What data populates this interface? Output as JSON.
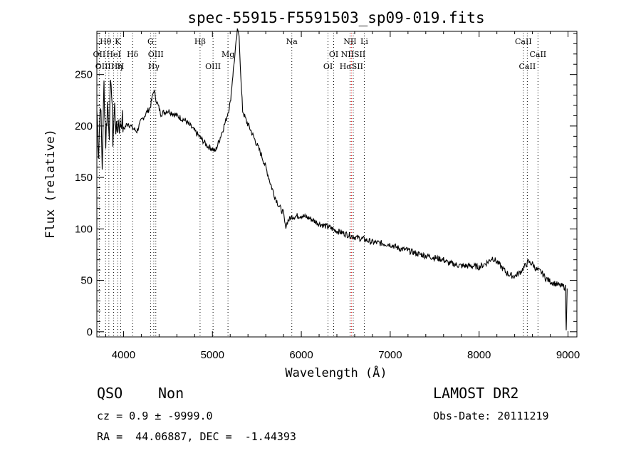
{
  "chart_data": {
    "type": "line",
    "title": "spec-55915-F5591503_sp09-019.fits",
    "xlabel": "Wavelength (Å)",
    "ylabel": "Flux (relative)",
    "xlim": [
      3700,
      9100
    ],
    "ylim": [
      -5,
      292
    ],
    "x_ticks": [
      4000,
      5000,
      6000,
      7000,
      8000,
      9000
    ],
    "y_ticks": [
      0,
      50,
      100,
      150,
      200,
      250
    ],
    "grid": false,
    "legend": "none",
    "series": [
      {
        "x": [
          3700,
          3720,
          3740,
          3760,
          3780,
          3800,
          3820,
          3840,
          3860,
          3880,
          3900,
          3920,
          3940,
          3960,
          3980,
          4000,
          4050,
          4100,
          4150,
          4200,
          4250,
          4300,
          4340,
          4360,
          4380,
          4420,
          4500,
          4600,
          4700,
          4800,
          4850,
          4900,
          4950,
          5000,
          5030,
          5060,
          5100,
          5150,
          5200,
          5230,
          5260,
          5280,
          5300,
          5320,
          5340,
          5380,
          5420,
          5460,
          5500,
          5550,
          5600,
          5650,
          5700,
          5750,
          5800,
          5820,
          5850,
          5900,
          6000,
          6100,
          6200,
          6300,
          6400,
          6500,
          6600,
          6700,
          6800,
          6900,
          7000,
          7100,
          7200,
          7300,
          7400,
          7500,
          7600,
          7650,
          7700,
          7800,
          7900,
          8000,
          8050,
          8100,
          8150,
          8200,
          8250,
          8300,
          8350,
          8400,
          8450,
          8500,
          8550,
          8600,
          8650,
          8700,
          8750,
          8800,
          8850,
          8900,
          8950,
          8970,
          8980,
          8990
        ],
        "y": [
          215,
          175,
          228,
          160,
          240,
          185,
          222,
          198,
          250,
          188,
          218,
          192,
          205,
          200,
          208,
          197,
          203,
          198,
          195,
          205,
          212,
          218,
          235,
          228,
          222,
          212,
          215,
          210,
          205,
          195,
          190,
          185,
          180,
          178,
          175,
          182,
          192,
          205,
          222,
          250,
          275,
          292,
          290,
          245,
          215,
          205,
          198,
          190,
          182,
          172,
          160,
          145,
          132,
          122,
          115,
          102,
          108,
          112,
          113,
          110,
          105,
          102,
          98,
          95,
          92,
          90,
          87,
          86,
          85,
          81,
          79,
          76,
          74,
          72,
          70,
          67,
          66,
          64,
          64,
          63,
          65,
          68,
          72,
          68,
          63,
          58,
          55,
          54,
          57,
          62,
          68,
          66,
          60,
          58,
          52,
          49,
          47,
          45,
          44,
          43,
          0,
          42
        ]
      }
    ],
    "line_markers": [
      {
        "label": "Hθ",
        "x": 3798,
        "row": 0,
        "color": "#000000"
      },
      {
        "label": "K",
        "x": 3934,
        "row": 0,
        "color": "#000000"
      },
      {
        "label": "G",
        "x": 4304,
        "row": 0,
        "color": "#000000"
      },
      {
        "label": "Hβ",
        "x": 4861,
        "row": 0,
        "color": "#000000"
      },
      {
        "label": "Na",
        "x": 5893,
        "row": 0,
        "color": "#000000"
      },
      {
        "label": "NII",
        "x": 6548,
        "row": 0,
        "color": "#000000"
      },
      {
        "label": "Li",
        "x": 6708,
        "row": 0,
        "color": "#000000"
      },
      {
        "label": "CaII",
        "x": 8498,
        "row": 0,
        "color": "#000000"
      },
      {
        "label": "OII",
        "x": 3727,
        "row": 1,
        "color": "#000000"
      },
      {
        "label": "HeI",
        "x": 3889,
        "row": 1,
        "color": "#000000"
      },
      {
        "label": "Hδ",
        "x": 4102,
        "row": 1,
        "color": "#000000"
      },
      {
        "label": "OIII",
        "x": 4363,
        "row": 1,
        "color": "#000000"
      },
      {
        "label": "Mg",
        "x": 5175,
        "row": 1,
        "color": "#000000"
      },
      {
        "label": "OI",
        "x": 6364,
        "row": 1,
        "color": "#000000"
      },
      {
        "label": "NIISII",
        "x": 6584,
        "row": 1,
        "color": "#000000"
      },
      {
        "label": "CaII",
        "x": 8662,
        "row": 1,
        "color": "#000000"
      },
      {
        "label": "OIIIHη",
        "x": 3835,
        "row": 2,
        "color": "#000000"
      },
      {
        "label": "H",
        "x": 3968,
        "row": 2,
        "color": "#000000"
      },
      {
        "label": "Hγ",
        "x": 4340,
        "row": 2,
        "color": "#000000"
      },
      {
        "label": "OIII",
        "x": 5007,
        "row": 2,
        "color": "#000000"
      },
      {
        "label": "OI",
        "x": 6300,
        "row": 2,
        "color": "#000000"
      },
      {
        "label": "HαSII",
        "x": 6563,
        "row": 2,
        "color": "#ff0000"
      },
      {
        "label": "CaII",
        "x": 8542,
        "row": 2,
        "color": "#000000"
      }
    ]
  },
  "info": {
    "class_label": "QSO",
    "subclass_label": "Non",
    "survey": "LAMOST DR2",
    "cz": "cz = 0.9 ± -9999.0",
    "obs_date": "Obs-Date: 20111219",
    "coords": "RA =  44.06887, DEC =  -1.44393"
  }
}
